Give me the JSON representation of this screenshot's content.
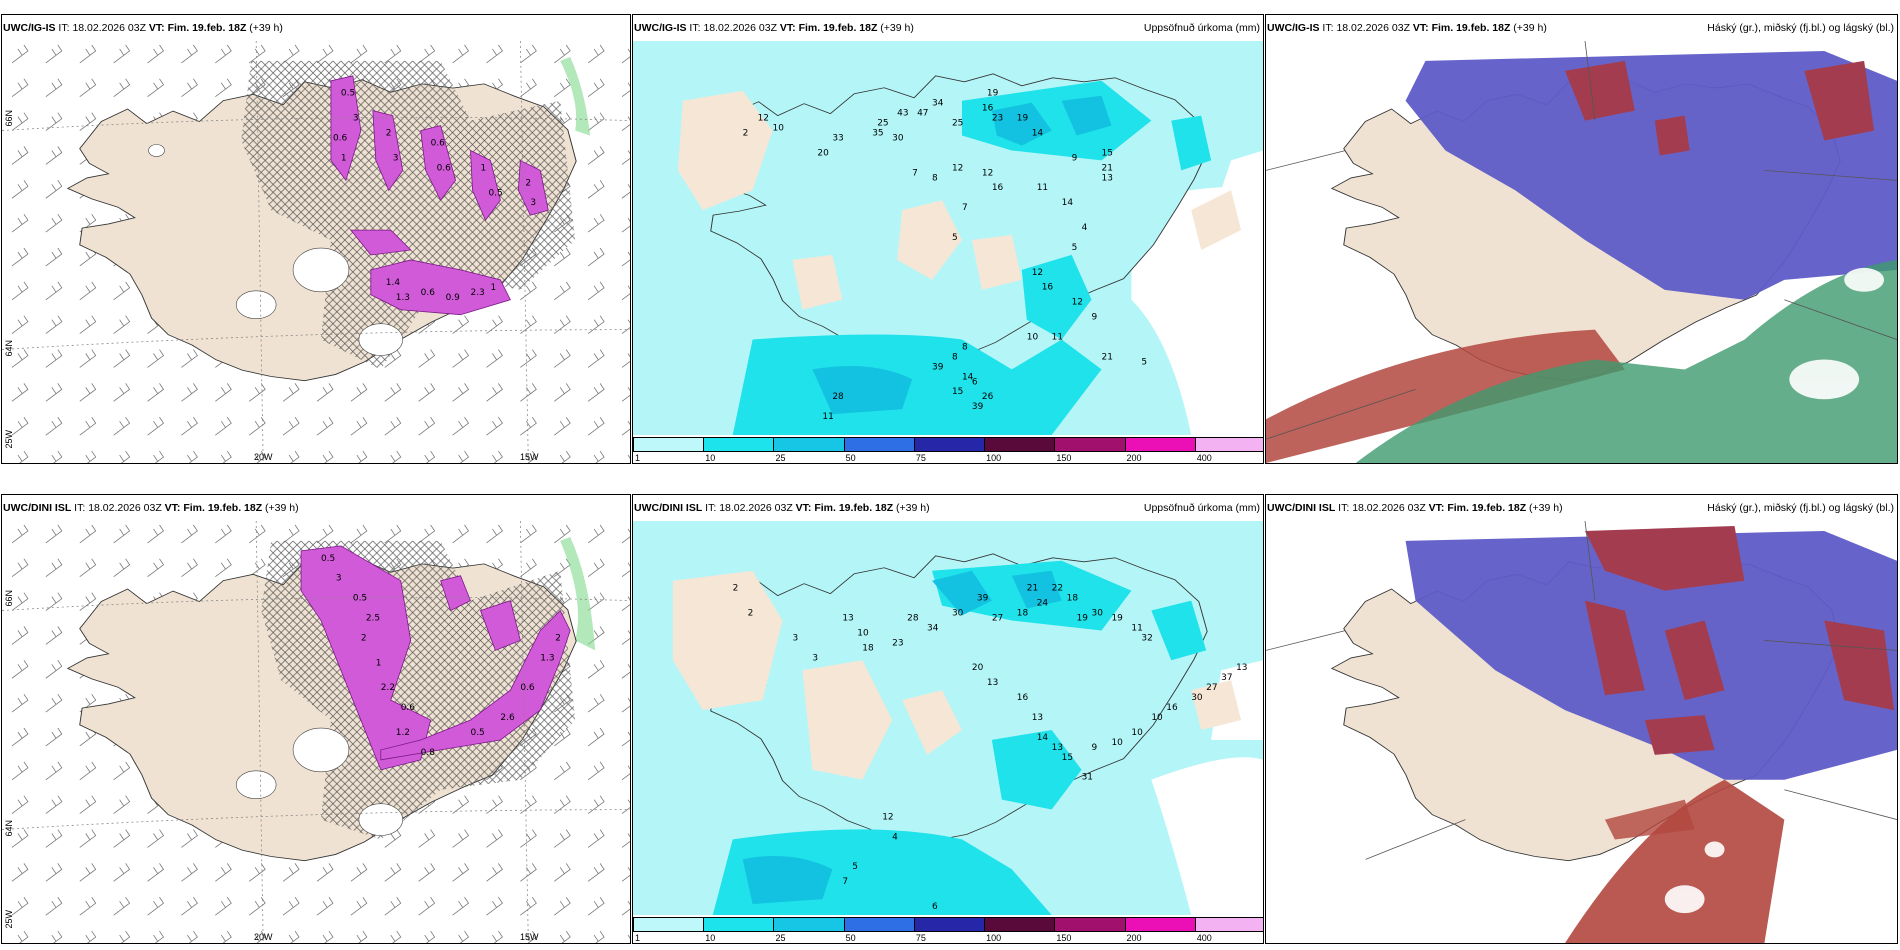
{
  "colors": {
    "land": "#efe2d2",
    "sea_light": "#b4f6f8",
    "precip_cyan": "#1fe2ea",
    "precip_mid": "#12c2e0",
    "cloud_high": "#5e5cc7",
    "cloud_mid": "#3f9a6e",
    "cloud_low": "#b3473f",
    "snow_magenta": "#cc4fd3",
    "hatch": "#555555"
  },
  "rows": [
    {
      "model": "UWC/IG-IS",
      "it_label": "IT:",
      "it": "18.02.2026 03Z",
      "vt_label": "VT:",
      "vt": "Fim. 19.feb. 18Z",
      "lead": "(+39 h)"
    },
    {
      "model": "UWC/DINI ISL",
      "it_label": "IT:",
      "it": "18.02.2026 03Z",
      "vt_label": "VT:",
      "vt": "Fim. 19.feb. 18Z",
      "lead": "(+39 h)"
    }
  ],
  "panel_titles": {
    "precip": "Uppsöfnuð úrkoma (mm)",
    "clouds": "Háský (gr.), miðský (fj.bl.) og lágský (bl.)"
  },
  "axis_labels": {
    "lat66": "66N",
    "lat64": "64N",
    "lon25": "25W",
    "lon20": "20W",
    "lon15": "15W"
  },
  "colorbar": {
    "ticks": [
      "1",
      "10",
      "25",
      "50",
      "75",
      "100",
      "150",
      "200",
      "400"
    ],
    "colors": [
      "#bff8fb",
      "#1de3ec",
      "#17c5e4",
      "#2f6fe6",
      "#2626a8",
      "#5a0a3a",
      "#a0106c",
      "#ea10b6",
      "#f3b3f2"
    ]
  },
  "snow_labels_top": [
    "0.5",
    "3",
    "0.6",
    "1",
    "2",
    "3",
    "0.6",
    "0.6",
    "1",
    "0.5",
    "2",
    "3",
    "1.4",
    "1.3",
    "0.6",
    "0.9",
    "2.3",
    "1"
  ],
  "snow_labels_bottom": [
    "0.5",
    "3",
    "0.5",
    "2.5",
    "2",
    "1",
    "2.2",
    "0.6",
    "1.2",
    "0.8",
    "0.5",
    "2.6",
    "0.6",
    "1.3",
    "2"
  ],
  "precip_values_top": [
    "2",
    "12",
    "10",
    "33",
    "20",
    "35",
    "43",
    "47",
    "25",
    "30",
    "34",
    "25",
    "19",
    "16",
    "23",
    "19",
    "14",
    "12",
    "8",
    "7",
    "12",
    "16",
    "11",
    "14",
    "9",
    "21",
    "13",
    "15",
    "5",
    "7",
    "4",
    "5",
    "12",
    "16",
    "12",
    "9",
    "11",
    "10",
    "8",
    "8",
    "6",
    "26",
    "39",
    "28",
    "11",
    "39",
    "15",
    "14",
    "21",
    "5"
  ],
  "precip_values_bottom": [
    "2",
    "2",
    "3",
    "3",
    "13",
    "10",
    "18",
    "23",
    "28",
    "34",
    "30",
    "39",
    "27",
    "18",
    "21",
    "24",
    "22",
    "18",
    "19",
    "30",
    "19",
    "11",
    "32",
    "20",
    "13",
    "16",
    "13",
    "14",
    "13",
    "15",
    "31",
    "9",
    "10",
    "10",
    "10",
    "16",
    "30",
    "27",
    "37",
    "13",
    "12",
    "4",
    "5",
    "7",
    "6"
  ]
}
